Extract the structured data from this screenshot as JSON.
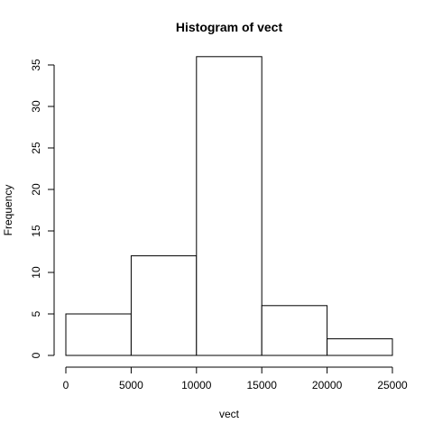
{
  "chart_data": {
    "type": "bar",
    "title": "Histogram of vect",
    "xlabel": "vect",
    "ylabel": "Frequency",
    "bins": [
      {
        "start": 0,
        "end": 5000,
        "count": 5
      },
      {
        "start": 5000,
        "end": 10000,
        "count": 12
      },
      {
        "start": 10000,
        "end": 15000,
        "count": 36
      },
      {
        "start": 15000,
        "end": 20000,
        "count": 6
      },
      {
        "start": 20000,
        "end": 25000,
        "count": 2
      }
    ],
    "xlim": [
      0,
      25000
    ],
    "ylim": [
      0,
      35
    ],
    "x_ticks": [
      0,
      5000,
      10000,
      15000,
      20000,
      25000
    ],
    "y_ticks": [
      0,
      5,
      10,
      15,
      20,
      25,
      30,
      35
    ],
    "grid": false,
    "colors": {
      "bar_fill": "#ffffff",
      "bar_stroke": "#000000"
    }
  }
}
